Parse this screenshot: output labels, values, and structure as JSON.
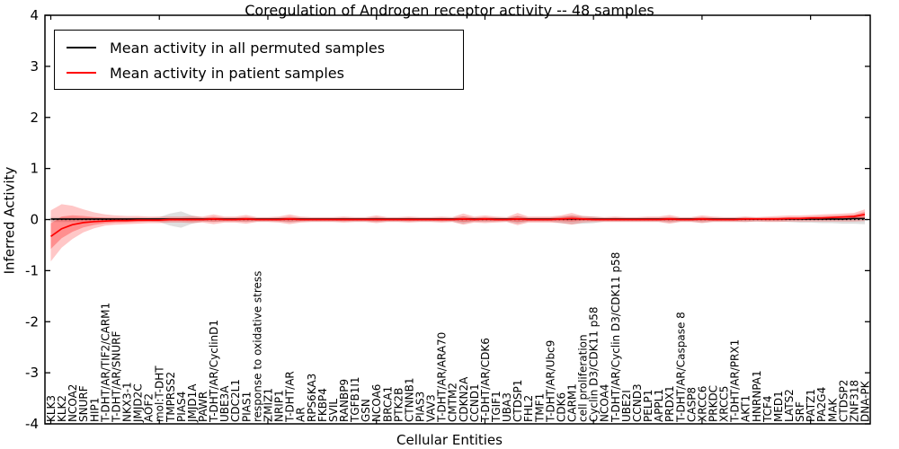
{
  "figure": {
    "title": "Coregulation of Androgen receptor activity -- 48 samples",
    "xlabel": "Cellular Entities",
    "ylabel": "Inferred Activity"
  },
  "colors": {
    "patient_line": "#ff0000",
    "permuted_line": "#000000",
    "patient_band": "#ff0000",
    "permuted_band": "#aaaaaa",
    "frame": "#000000"
  },
  "chart_data": {
    "type": "line",
    "title": "Coregulation of Androgen receptor activity -- 48 samples",
    "xlabel": "Cellular Entities",
    "ylabel": "Inferred Activity",
    "ylim": [
      -4,
      4
    ],
    "yticks": [
      -4,
      -3,
      -2,
      -1,
      0,
      1,
      2,
      3,
      4
    ],
    "grid": false,
    "legend_position": "upper left",
    "zero_reference_line": 0,
    "categories": [
      "KLK3",
      "KLK2",
      "NCOA2",
      "SNURF",
      "HIP1",
      "T-DHT/AR/TIF2/CARM1",
      "T-DHT/AR/SNURF",
      "NKX3-1",
      "JMJD2C",
      "AOF2",
      "mol:T-DHT",
      "TMPRSS2",
      "PIAS4",
      "JMJD1A",
      "PAWR",
      "T-DHT/AR/CyclinD1",
      "UBE3A",
      "CDC2L1",
      "PIAS1",
      "response to oxidative stress",
      "ZMIZ1",
      "NRIP1",
      "T-DHT/AR",
      "AR",
      "RPS6KA3",
      "FKBP4",
      "SVIL",
      "RANBP9",
      "TGFB1I1",
      "GSN",
      "NCOA6",
      "BRCA1",
      "PTK2B",
      "CTNNB1",
      "PIAS3",
      "VAV3",
      "T-DHT/AR/ARA70",
      "CMTM2",
      "CDKN2A",
      "CCND1",
      "T-DHT/AR/CDK6",
      "TGIF1",
      "UBA3",
      "CTDSP1",
      "FHL2",
      "TMF1",
      "T-DHT/AR/Ubc9",
      "CDK6",
      "CARM1",
      "cell proliferation",
      "Cyclin D3/CDK11 p58",
      "NCOA4",
      "T-DHT/AR/Cyclin D3/CDK11 p58",
      "UBE2I",
      "CCND3",
      "PELP1",
      "APPL1",
      "PRDX1",
      "T-DHT/AR/Caspase 8",
      "CASP8",
      "XRCC6",
      "PRKDC",
      "XRCC5",
      "T-DHT/AR/PRX1",
      "AKT1",
      "HNRNPA1",
      "TCF4",
      "MED1",
      "LATS2",
      "SRF",
      "PATZ1",
      "PA2G4",
      "MAK",
      "CTDSP2",
      "ZNF318",
      "DNA-PK"
    ],
    "series": [
      {
        "name": "Mean activity in all permuted samples",
        "color": "#000000",
        "values": [
          0.01,
          0.01,
          0.01,
          0.01,
          0.01,
          0.01,
          0.01,
          0.01,
          0.01,
          0.01,
          0.01,
          0.01,
          0.01,
          0.01,
          0.01,
          0.01,
          0.01,
          0.01,
          0.01,
          0.01,
          0.01,
          0.01,
          0.01,
          0.01,
          0.01,
          0.01,
          0.01,
          0.01,
          0.01,
          0.01,
          0.01,
          0.01,
          0.01,
          0.01,
          0.01,
          0.01,
          0.01,
          0.01,
          0.01,
          0.01,
          0.01,
          0.01,
          0.01,
          0.01,
          0.01,
          0.01,
          0.01,
          0.01,
          0.01,
          0.01,
          0.01,
          0.01,
          0.01,
          0.01,
          0.01,
          0.01,
          0.01,
          0.01,
          0.01,
          0.01,
          0.01,
          0.01,
          0.01,
          0.01,
          0.01,
          0.01,
          0.01,
          0.01,
          0.01,
          0.01,
          0.01,
          0.01,
          0.01,
          0.01,
          0.02,
          0.02
        ]
      },
      {
        "name": "Mean activity in patient samples",
        "color": "#ff0000",
        "values": [
          -0.33,
          -0.18,
          -0.1,
          -0.06,
          -0.04,
          -0.03,
          -0.02,
          -0.02,
          -0.01,
          -0.01,
          -0.01,
          0.0,
          0.0,
          0.0,
          0.0,
          0.01,
          0.0,
          0.0,
          0.01,
          0.0,
          0.0,
          0.0,
          0.01,
          0.0,
          0.0,
          0.0,
          0.0,
          0.0,
          0.0,
          0.0,
          0.0,
          0.0,
          0.0,
          0.0,
          0.0,
          0.0,
          0.0,
          0.0,
          0.01,
          0.0,
          0.01,
          0.0,
          0.0,
          0.01,
          0.0,
          0.0,
          0.0,
          0.01,
          0.02,
          0.01,
          0.0,
          0.0,
          0.0,
          0.0,
          0.0,
          0.0,
          0.0,
          0.01,
          0.0,
          0.0,
          0.01,
          0.0,
          0.0,
          0.0,
          0.01,
          0.01,
          0.01,
          0.01,
          0.02,
          0.02,
          0.03,
          0.03,
          0.04,
          0.05,
          0.06,
          0.1
        ]
      }
    ],
    "bands": [
      {
        "name": "permuted-samples-range",
        "color": "#aaaaaa",
        "upper": [
          0.05,
          0.05,
          0.05,
          0.04,
          0.04,
          0.04,
          0.04,
          0.04,
          0.04,
          0.04,
          0.05,
          0.12,
          0.16,
          0.08,
          0.04,
          0.05,
          0.04,
          0.04,
          0.05,
          0.04,
          0.04,
          0.04,
          0.05,
          0.04,
          0.04,
          0.04,
          0.04,
          0.04,
          0.04,
          0.04,
          0.05,
          0.04,
          0.04,
          0.04,
          0.04,
          0.04,
          0.04,
          0.04,
          0.06,
          0.04,
          0.05,
          0.04,
          0.04,
          0.07,
          0.04,
          0.04,
          0.04,
          0.06,
          0.08,
          0.07,
          0.06,
          0.04,
          0.04,
          0.04,
          0.04,
          0.04,
          0.04,
          0.05,
          0.04,
          0.04,
          0.05,
          0.04,
          0.04,
          0.04,
          0.05,
          0.04,
          0.04,
          0.04,
          0.04,
          0.04,
          0.05,
          0.05,
          0.05,
          0.05,
          0.05,
          0.06
        ],
        "lower": [
          -0.05,
          -0.05,
          -0.05,
          -0.04,
          -0.04,
          -0.04,
          -0.04,
          -0.04,
          -0.04,
          -0.04,
          -0.05,
          -0.12,
          -0.16,
          -0.08,
          -0.04,
          -0.05,
          -0.04,
          -0.04,
          -0.05,
          -0.04,
          -0.04,
          -0.04,
          -0.06,
          -0.04,
          -0.04,
          -0.04,
          -0.04,
          -0.04,
          -0.04,
          -0.04,
          -0.05,
          -0.04,
          -0.04,
          -0.04,
          -0.04,
          -0.04,
          -0.04,
          -0.04,
          -0.08,
          -0.04,
          -0.05,
          -0.04,
          -0.04,
          -0.08,
          -0.04,
          -0.04,
          -0.04,
          -0.07,
          -0.09,
          -0.08,
          -0.07,
          -0.04,
          -0.04,
          -0.04,
          -0.04,
          -0.04,
          -0.04,
          -0.06,
          -0.04,
          -0.04,
          -0.06,
          -0.04,
          -0.04,
          -0.04,
          -0.05,
          -0.04,
          -0.04,
          -0.04,
          -0.05,
          -0.06,
          -0.06,
          -0.07,
          -0.07,
          -0.08,
          -0.08,
          -0.09
        ]
      },
      {
        "name": "patient-samples-range",
        "color": "#ff0000",
        "upper": [
          0.18,
          0.3,
          0.27,
          0.2,
          0.14,
          0.1,
          0.08,
          0.07,
          0.07,
          0.06,
          0.06,
          0.06,
          0.06,
          0.07,
          0.06,
          0.1,
          0.06,
          0.06,
          0.09,
          0.05,
          0.05,
          0.06,
          0.1,
          0.06,
          0.05,
          0.05,
          0.05,
          0.06,
          0.05,
          0.05,
          0.08,
          0.05,
          0.05,
          0.06,
          0.05,
          0.05,
          0.06,
          0.05,
          0.12,
          0.06,
          0.08,
          0.06,
          0.05,
          0.13,
          0.06,
          0.06,
          0.06,
          0.08,
          0.13,
          0.07,
          0.06,
          0.05,
          0.06,
          0.05,
          0.05,
          0.06,
          0.06,
          0.09,
          0.05,
          0.05,
          0.08,
          0.06,
          0.05,
          0.05,
          0.06,
          0.05,
          0.06,
          0.07,
          0.08,
          0.08,
          0.09,
          0.1,
          0.11,
          0.12,
          0.13,
          0.2
        ],
        "lower": [
          -0.82,
          -0.55,
          -0.38,
          -0.25,
          -0.17,
          -0.12,
          -0.1,
          -0.09,
          -0.08,
          -0.07,
          -0.07,
          -0.06,
          -0.06,
          -0.07,
          -0.06,
          -0.09,
          -0.06,
          -0.06,
          -0.08,
          -0.05,
          -0.05,
          -0.06,
          -0.09,
          -0.06,
          -0.05,
          -0.05,
          -0.05,
          -0.06,
          -0.05,
          -0.05,
          -0.07,
          -0.05,
          -0.05,
          -0.06,
          -0.05,
          -0.05,
          -0.06,
          -0.05,
          -0.1,
          -0.06,
          -0.07,
          -0.06,
          -0.05,
          -0.11,
          -0.06,
          -0.06,
          -0.06,
          -0.07,
          -0.1,
          -0.06,
          -0.05,
          -0.05,
          -0.05,
          -0.05,
          -0.05,
          -0.05,
          -0.05,
          -0.08,
          -0.05,
          -0.05,
          -0.07,
          -0.05,
          -0.05,
          -0.05,
          -0.05,
          -0.04,
          -0.05,
          -0.05,
          -0.04,
          -0.04,
          -0.04,
          -0.04,
          -0.04,
          -0.04,
          -0.04,
          -0.03
        ]
      }
    ]
  }
}
